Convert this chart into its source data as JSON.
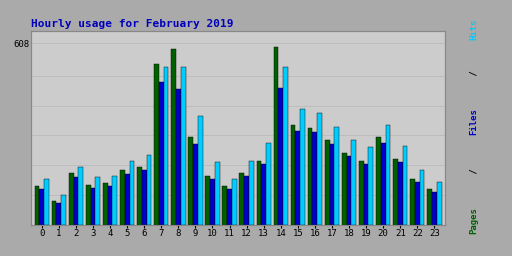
{
  "title": "Hourly usage for February 2019",
  "hours": [
    0,
    1,
    2,
    3,
    4,
    5,
    6,
    7,
    8,
    9,
    10,
    11,
    12,
    13,
    14,
    15,
    16,
    17,
    18,
    19,
    20,
    21,
    22,
    23
  ],
  "hits": [
    130,
    80,
    175,
    135,
    140,
    185,
    195,
    540,
    590,
    295,
    165,
    130,
    175,
    215,
    595,
    335,
    325,
    285,
    240,
    215,
    295,
    220,
    155,
    120
  ],
  "pages": [
    120,
    75,
    160,
    125,
    130,
    170,
    185,
    480,
    455,
    270,
    155,
    120,
    165,
    205,
    460,
    315,
    310,
    270,
    230,
    205,
    275,
    210,
    145,
    110
  ],
  "files": [
    155,
    100,
    195,
    160,
    165,
    215,
    235,
    530,
    530,
    365,
    210,
    155,
    215,
    275,
    530,
    390,
    375,
    330,
    285,
    260,
    335,
    265,
    185,
    145
  ],
  "color_hits": "#006000",
  "color_pages": "#0000CC",
  "color_files": "#00CCFF",
  "background_color": "#AAAAAA",
  "plot_bg": "#CCCCCC",
  "title_color": "#0000BB",
  "bar_width": 0.28,
  "ylim": [
    0,
    650
  ],
  "ytick_value": 608,
  "grid_color": "#BBBBBB",
  "figsize": [
    5.12,
    2.56
  ],
  "dpi": 100
}
